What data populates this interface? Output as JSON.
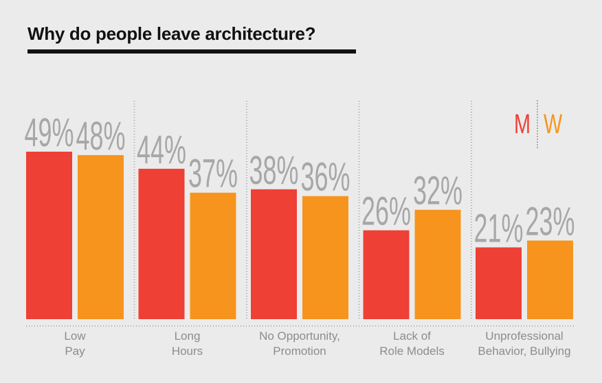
{
  "title": "Why do people leave architecture?",
  "legend": {
    "items": [
      {
        "label": "M",
        "color": "#ee4035"
      },
      {
        "label": "W",
        "color": "#f7941e"
      }
    ],
    "placement": "top-right"
  },
  "colors": {
    "label_text": "#a7a7a7",
    "category_text": "#8c8c8c",
    "separator": "#a9a9a9"
  },
  "chart_data": {
    "type": "bar",
    "title": "Why do people leave architecture?",
    "categories": [
      [
        "Low",
        "Pay"
      ],
      [
        "Long",
        "Hours"
      ],
      [
        "No Opportunity,",
        "Promotion"
      ],
      [
        "Lack of",
        "Role Models"
      ],
      [
        "Unprofessional",
        "Behavior, Bullying"
      ]
    ],
    "series": [
      {
        "name": "M",
        "values": [
          49,
          44,
          38,
          26,
          21
        ],
        "color": "#ee4035"
      },
      {
        "name": "W",
        "values": [
          48,
          37,
          36,
          32,
          23
        ],
        "color": "#f7941e"
      }
    ],
    "value_suffix": "%",
    "ylim": [
      0,
      100
    ],
    "grid": false,
    "legend_placement": "top-right"
  }
}
